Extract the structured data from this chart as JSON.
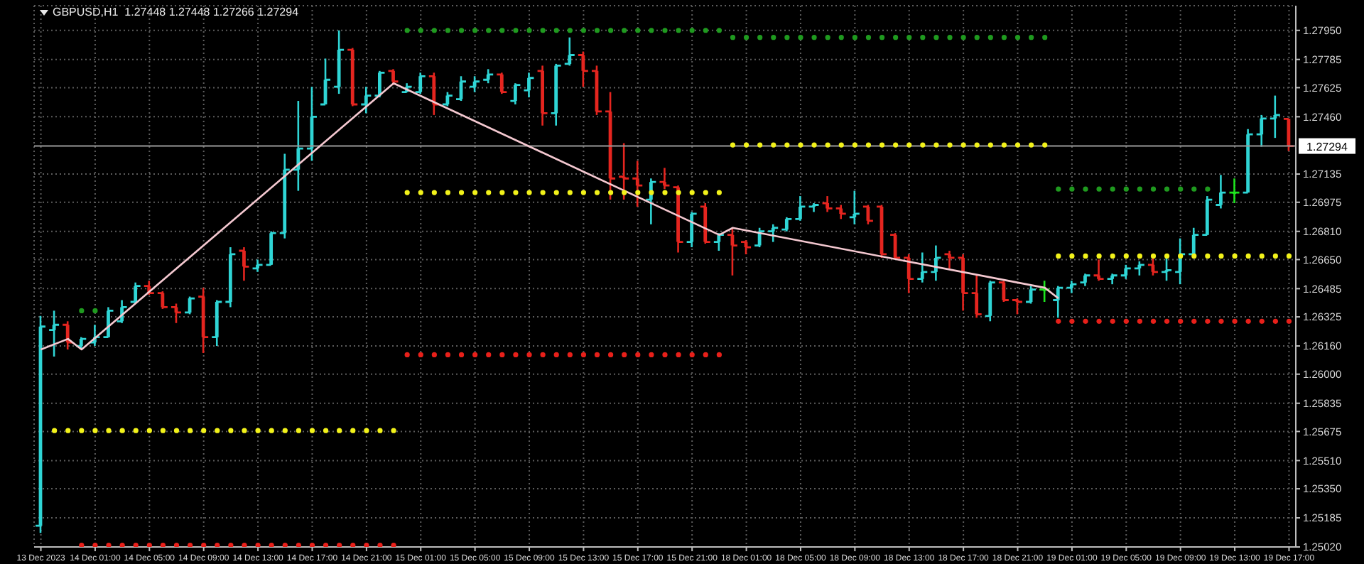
{
  "chart_data": {
    "type": "candlestick",
    "title": "GBPUSD,H1  1.27448 1.27448 1.27266 1.27294",
    "categories": [
      "13 Dec 2023",
      null,
      null,
      null,
      "14 Dec 01:00",
      null,
      null,
      null,
      "14 Dec 05:00",
      null,
      null,
      null,
      "14 Dec 09:00",
      null,
      null,
      null,
      "14 Dec 13:00",
      null,
      null,
      null,
      "14 Dec 17:00",
      null,
      null,
      null,
      "14 Dec 21:00",
      null,
      null,
      null,
      "15 Dec 01:00",
      null,
      null,
      null,
      "15 Dec 05:00",
      null,
      null,
      null,
      "15 Dec 09:00",
      null,
      null,
      null,
      "15 Dec 13:00",
      null,
      null,
      null,
      "15 Dec 17:00",
      null,
      null,
      null,
      "15 Dec 21:00",
      null,
      null,
      null,
      "18 Dec 01:00",
      null,
      null,
      null,
      "18 Dec 05:00",
      null,
      null,
      null,
      "18 Dec 09:00",
      null,
      null,
      null,
      "18 Dec 13:00",
      null,
      null,
      null,
      "18 Dec 17:00",
      null,
      null,
      null,
      "18 Dec 21:00",
      null,
      null,
      null,
      "19 Dec 01:00",
      null,
      null,
      null,
      "19 Dec 05:00",
      null,
      null,
      null,
      "19 Dec 09:00",
      null,
      null,
      null,
      "19 Dec 13:00",
      null,
      null,
      null,
      "19 Dec 17:00"
    ],
    "ohlc": [
      [
        1.2514,
        1.2633,
        1.251,
        1.2627
      ],
      [
        1.2625,
        1.2636,
        1.261,
        1.2628
      ],
      [
        1.2628,
        1.263,
        1.2614,
        1.2618
      ],
      [
        1.2616,
        1.2621,
        1.2614,
        1.262
      ],
      [
        1.2618,
        1.2628,
        1.2616,
        1.2621
      ],
      [
        1.2621,
        1.2638,
        1.2621,
        1.2636
      ],
      [
        1.263,
        1.2642,
        1.2629,
        1.2638
      ],
      [
        1.2641,
        1.2652,
        1.264,
        1.265
      ],
      [
        1.265,
        1.2653,
        1.2645,
        1.2646
      ],
      [
        1.2646,
        1.2647,
        1.2637,
        1.2638
      ],
      [
        1.2638,
        1.264,
        1.2629,
        1.2635
      ],
      [
        1.2635,
        1.2644,
        1.2634,
        1.2643
      ],
      [
        1.2644,
        1.2649,
        1.2612,
        1.2621
      ],
      [
        1.2621,
        1.2642,
        1.2616,
        1.2641
      ],
      [
        1.2641,
        1.2672,
        1.2638,
        1.2668
      ],
      [
        1.267,
        1.2672,
        1.2653,
        1.2661
      ],
      [
        1.266,
        1.2665,
        1.2658,
        1.2662
      ],
      [
        1.2662,
        1.2681,
        1.2662,
        1.268
      ],
      [
        1.268,
        1.2725,
        1.2677,
        1.2716
      ],
      [
        1.2716,
        1.2755,
        1.2704,
        1.2728
      ],
      [
        1.2728,
        1.2763,
        1.2721,
        1.2746
      ],
      [
        1.2753,
        1.2779,
        1.2753,
        1.2767
      ],
      [
        1.2763,
        1.2795,
        1.2759,
        1.2784
      ],
      [
        1.2784,
        1.2785,
        1.2752,
        1.2753
      ],
      [
        1.2753,
        1.2763,
        1.2748,
        1.2758
      ],
      [
        1.2758,
        1.2772,
        1.2757,
        1.2771
      ],
      [
        1.2772,
        1.2773,
        1.2764,
        1.2766
      ],
      [
        1.276,
        1.2765,
        1.276,
        1.2763
      ],
      [
        1.276,
        1.2771,
        1.2759,
        1.2769
      ],
      [
        1.2769,
        1.2771,
        1.2747,
        1.2753
      ],
      [
        1.2753,
        1.276,
        1.2752,
        1.2758
      ],
      [
        1.2756,
        1.2769,
        1.2755,
        1.2766
      ],
      [
        1.2763,
        1.2769,
        1.276,
        1.2766
      ],
      [
        1.2767,
        1.2773,
        1.2765,
        1.277
      ],
      [
        1.277,
        1.2771,
        1.2759,
        1.276
      ],
      [
        1.2755,
        1.2765,
        1.2753,
        1.2764
      ],
      [
        1.2761,
        1.2771,
        1.2757,
        1.2768
      ],
      [
        1.2772,
        1.2775,
        1.2741,
        1.2748
      ],
      [
        1.2748,
        1.2776,
        1.2741,
        1.2775
      ],
      [
        1.2776,
        1.2791,
        1.2775,
        1.2781
      ],
      [
        1.2781,
        1.2783,
        1.2763,
        1.2772
      ],
      [
        1.2772,
        1.2775,
        1.2747,
        1.2749
      ],
      [
        1.2749,
        1.276,
        1.2699,
        1.2711
      ],
      [
        1.2712,
        1.2731,
        1.2699,
        1.2711
      ],
      [
        1.2711,
        1.2721,
        1.2695,
        1.2707
      ],
      [
        1.2699,
        1.2711,
        1.2685,
        1.2709
      ],
      [
        1.2709,
        1.2717,
        1.2705,
        1.2707
      ],
      [
        1.2706,
        1.2707,
        1.2669,
        1.2675
      ],
      [
        1.2675,
        1.2692,
        1.2672,
        1.2691
      ],
      [
        1.2695,
        1.2697,
        1.2674,
        1.2675
      ],
      [
        1.2675,
        1.268,
        1.267,
        1.2679
      ],
      [
        1.2679,
        1.2683,
        1.2656,
        1.2673
      ],
      [
        1.2675,
        1.2676,
        1.2668,
        1.2672
      ],
      [
        1.2673,
        1.2683,
        1.2672,
        1.2681
      ],
      [
        1.2681,
        1.2685,
        1.2675,
        1.2683
      ],
      [
        1.2682,
        1.2689,
        1.2681,
        1.2688
      ],
      [
        1.2688,
        1.2701,
        1.2687,
        1.2695
      ],
      [
        1.2695,
        1.2697,
        1.2692,
        1.2696
      ],
      [
        1.2697,
        1.2701,
        1.2692,
        1.2694
      ],
      [
        1.2694,
        1.2696,
        1.2688,
        1.2691
      ],
      [
        1.2689,
        1.2704,
        1.2685,
        1.2691
      ],
      [
        1.2695,
        1.2696,
        1.2685,
        1.2687
      ],
      [
        1.2695,
        1.2696,
        1.2666,
        1.2668
      ],
      [
        1.2679,
        1.268,
        1.2665,
        1.2666
      ],
      [
        1.2666,
        1.2668,
        1.2646,
        1.2654
      ],
      [
        1.2654,
        1.2669,
        1.2652,
        1.2658
      ],
      [
        1.2658,
        1.2673,
        1.2653,
        1.2666
      ],
      [
        1.2668,
        1.267,
        1.266,
        1.2666
      ],
      [
        1.2666,
        1.2668,
        1.2636,
        1.2646
      ],
      [
        1.2646,
        1.2656,
        1.2632,
        1.2634
      ],
      [
        1.2633,
        1.2653,
        1.263,
        1.2652
      ],
      [
        1.2652,
        1.2653,
        1.2641,
        1.2642
      ],
      [
        1.2642,
        1.2643,
        1.2634,
        1.2641
      ],
      [
        1.2641,
        1.265,
        1.264,
        1.2648
      ],
      [
        1.2648,
        1.2653,
        1.2641,
        1.2648
      ],
      [
        1.2642,
        1.265,
        1.2632,
        1.2649
      ],
      [
        1.2649,
        1.2653,
        1.2646,
        1.2651
      ],
      [
        1.2652,
        1.2657,
        1.265,
        1.2656
      ],
      [
        1.2656,
        1.2665,
        1.2653,
        1.2654
      ],
      [
        1.2654,
        1.2657,
        1.2651,
        1.2656
      ],
      [
        1.2656,
        1.2662,
        1.2654,
        1.266
      ],
      [
        1.266,
        1.2664,
        1.2656,
        1.2662
      ],
      [
        1.2662,
        1.2668,
        1.2656,
        1.2658
      ],
      [
        1.2658,
        1.2668,
        1.2653,
        1.2659
      ],
      [
        1.2658,
        1.2677,
        1.2651,
        1.2668
      ],
      [
        1.2668,
        1.2683,
        1.2666,
        1.2679
      ],
      [
        1.2679,
        1.2701,
        1.2679,
        1.2699
      ],
      [
        1.2696,
        1.2713,
        1.2694,
        1.2703
      ],
      [
        1.2703,
        1.2711,
        1.2697,
        1.2703
      ],
      [
        1.2703,
        1.2739,
        1.2703,
        1.2736
      ],
      [
        1.2736,
        1.2747,
        1.2729,
        1.2745
      ],
      [
        1.2745,
        1.2758,
        1.2734,
        1.2747
      ],
      [
        1.27448,
        1.27448,
        1.27266,
        1.27294
      ]
    ],
    "colors": [
      "#2fd5d5",
      "#2fd5d5",
      "#e5251f",
      "#2fd5d5",
      "#2fd5d5",
      "#2fd5d5",
      "#2fd5d5",
      "#2fd5d5",
      "#e5251f",
      "#e5251f",
      "#e5251f",
      "#2fd5d5",
      "#e5251f",
      "#2fd5d5",
      "#2fd5d5",
      "#e5251f",
      "#2fd5d5",
      "#2fd5d5",
      "#2fd5d5",
      "#2fd5d5",
      "#2fd5d5",
      "#2fd5d5",
      "#2fd5d5",
      "#e5251f",
      "#2fd5d5",
      "#2fd5d5",
      "#e5251f",
      "#2fd5d5",
      "#2fd5d5",
      "#e5251f",
      "#2fd5d5",
      "#2fd5d5",
      "#2fd5d5",
      "#2fd5d5",
      "#e5251f",
      "#2fd5d5",
      "#2fd5d5",
      "#e5251f",
      "#2fd5d5",
      "#2fd5d5",
      "#e5251f",
      "#e5251f",
      "#e5251f",
      "#e5251f",
      "#e5251f",
      "#2fd5d5",
      "#e5251f",
      "#e5251f",
      "#2fd5d5",
      "#e5251f",
      "#2fd5d5",
      "#e5251f",
      "#e5251f",
      "#2fd5d5",
      "#2fd5d5",
      "#2fd5d5",
      "#2fd5d5",
      "#2fd5d5",
      "#e5251f",
      "#e5251f",
      "#2fd5d5",
      "#e5251f",
      "#e5251f",
      "#e5251f",
      "#e5251f",
      "#2fd5d5",
      "#2fd5d5",
      "#e5251f",
      "#e5251f",
      "#e5251f",
      "#2fd5d5",
      "#e5251f",
      "#e5251f",
      "#2fd5d5",
      "#1ee61e",
      "#2fd5d5",
      "#2fd5d5",
      "#2fd5d5",
      "#e5251f",
      "#2fd5d5",
      "#2fd5d5",
      "#2fd5d5",
      "#e5251f",
      "#2fd5d5",
      "#2fd5d5",
      "#2fd5d5",
      "#2fd5d5",
      "#2fd5d5",
      "#1ee61e",
      "#2fd5d5",
      "#2fd5d5",
      "#2fd5d5",
      "#e5251f"
    ],
    "series": [
      {
        "type": "line",
        "color": "#f4c8d0",
        "values": [
          1.2614,
          null,
          1.262,
          1.2614,
          null,
          null,
          null,
          null,
          null,
          null,
          null,
          null,
          null,
          null,
          null,
          null,
          null,
          null,
          null,
          null,
          null,
          null,
          null,
          null,
          null,
          null,
          1.2765,
          null,
          null,
          null,
          null,
          null,
          null,
          null,
          null,
          null,
          null,
          null,
          null,
          null,
          null,
          null,
          null,
          null,
          null,
          null,
          null,
          null,
          null,
          null,
          1.2679,
          1.2683,
          null,
          null,
          null,
          null,
          null,
          null,
          null,
          null,
          null,
          null,
          null,
          null,
          null,
          null,
          null,
          null,
          null,
          null,
          null,
          null,
          null,
          null,
          1.2649,
          1.2643,
          null,
          null,
          null,
          null,
          null,
          null,
          null,
          null,
          null,
          null,
          null,
          null,
          null,
          null,
          null,
          null,
          null
        ]
      },
      {
        "type": "scatter",
        "marker": "circle",
        "color": "#1f9a1f",
        "values": [
          null,
          null,
          null,
          1.2636,
          1.2636,
          null,
          null,
          null,
          null,
          null,
          null,
          null,
          null,
          null,
          null,
          null,
          null,
          null,
          null,
          null,
          null,
          null,
          null,
          null,
          null,
          null,
          null,
          1.2795,
          1.2795,
          1.2795,
          1.2795,
          1.2795,
          1.2795,
          1.2795,
          1.2795,
          1.2795,
          1.2795,
          1.2795,
          1.2795,
          1.2795,
          1.2795,
          1.2795,
          1.2795,
          1.2795,
          1.2795,
          1.2795,
          1.2795,
          1.2795,
          1.2795,
          1.2795,
          1.2795,
          1.2791,
          1.2791,
          1.2791,
          1.2791,
          1.2791,
          1.2791,
          1.2791,
          1.2791,
          1.2791,
          1.2791,
          1.2791,
          1.2791,
          1.2791,
          1.2791,
          1.2791,
          1.2791,
          1.2791,
          1.2791,
          1.2791,
          1.2791,
          1.2791,
          1.2791,
          1.2791,
          1.2791,
          1.2705,
          1.2705,
          1.2705,
          1.2705,
          1.2705,
          1.2705,
          1.2705,
          1.2705,
          1.2705,
          1.2705,
          1.2705,
          1.2705,
          null,
          null,
          null,
          null,
          null,
          null
        ]
      },
      {
        "type": "scatter",
        "marker": "circle",
        "color": "#f2f21a",
        "values": [
          null,
          1.2568,
          1.2568,
          1.2568,
          1.2568,
          1.2568,
          1.2568,
          1.2568,
          1.2568,
          1.2568,
          1.2568,
          1.2568,
          1.2568,
          1.2568,
          1.2568,
          1.2568,
          1.2568,
          1.2568,
          1.2568,
          1.2568,
          1.2568,
          1.2568,
          1.2568,
          1.2568,
          1.2568,
          1.2568,
          1.2568,
          1.2703,
          1.2703,
          1.2703,
          1.2703,
          1.2703,
          1.2703,
          1.2703,
          1.2703,
          1.2703,
          1.2703,
          1.2703,
          1.2703,
          1.2703,
          1.2703,
          1.2703,
          1.2703,
          1.2703,
          1.2703,
          1.2703,
          1.2703,
          1.2703,
          1.2703,
          1.2703,
          1.2703,
          1.273,
          1.273,
          1.273,
          1.273,
          1.273,
          1.273,
          1.273,
          1.273,
          1.273,
          1.273,
          1.273,
          1.273,
          1.273,
          1.273,
          1.273,
          1.273,
          1.273,
          1.273,
          1.273,
          1.273,
          1.273,
          1.273,
          1.273,
          1.273,
          1.2667,
          1.2667,
          1.2667,
          1.2667,
          1.2667,
          1.2667,
          1.2667,
          1.2667,
          1.2667,
          1.2667,
          1.2667,
          1.2667,
          1.2667,
          1.2667,
          1.2667,
          1.2667,
          1.2667,
          1.2667
        ]
      },
      {
        "type": "scatter",
        "marker": "circle",
        "color": "#e8201a",
        "values": [
          null,
          null,
          null,
          1.2503,
          1.2503,
          1.2503,
          1.2503,
          1.2503,
          1.2503,
          1.2503,
          1.2503,
          1.2503,
          1.2503,
          1.2503,
          1.2503,
          1.2503,
          1.2503,
          1.2503,
          1.2503,
          1.2503,
          1.2503,
          1.2503,
          1.2503,
          1.2503,
          1.2503,
          1.2503,
          1.2503,
          1.2611,
          1.2611,
          1.2611,
          1.2611,
          1.2611,
          1.2611,
          1.2611,
          1.2611,
          1.2611,
          1.2611,
          1.2611,
          1.2611,
          1.2611,
          1.2611,
          1.2611,
          1.2611,
          1.2611,
          1.2611,
          1.2611,
          1.2611,
          1.2611,
          1.2611,
          1.2611,
          1.2611,
          null,
          null,
          null,
          null,
          null,
          null,
          null,
          null,
          null,
          null,
          null,
          null,
          null,
          null,
          null,
          null,
          null,
          null,
          null,
          null,
          null,
          null,
          null,
          null,
          1.263,
          1.263,
          1.263,
          1.263,
          1.263,
          1.263,
          1.263,
          1.263,
          1.263,
          1.263,
          1.263,
          1.263,
          1.263,
          1.263,
          1.263,
          1.263,
          1.263,
          1.263
        ]
      }
    ],
    "ylim": [
      1.2502,
      1.2809
    ],
    "yticks": [
      {
        "value": 1.2795,
        "label": "1.27950"
      },
      1.27785,
      1.27625,
      {
        "value": 1.2746,
        "label": "1.27460"
      },
      1.27135,
      1.26975,
      {
        "value": 1.2681,
        "label": "1.26810"
      },
      {
        "value": 1.2665,
        "label": "1.26650"
      },
      1.26485,
      1.26325,
      {
        "value": 1.2616,
        "label": "1.26160"
      },
      {
        "value": 1.26,
        "label": "1.26000"
      },
      1.25835,
      1.25675,
      {
        "value": 1.2551,
        "label": "1.25510"
      },
      {
        "value": 1.2535,
        "label": "1.25350"
      },
      1.25185,
      {
        "value": 1.2502,
        "label": "1.25020"
      }
    ],
    "ref_lines": [
      {
        "axis": "y",
        "value": 1.27294,
        "label": "1.27294",
        "color": "#9a9a9a"
      }
    ],
    "grid": true
  }
}
